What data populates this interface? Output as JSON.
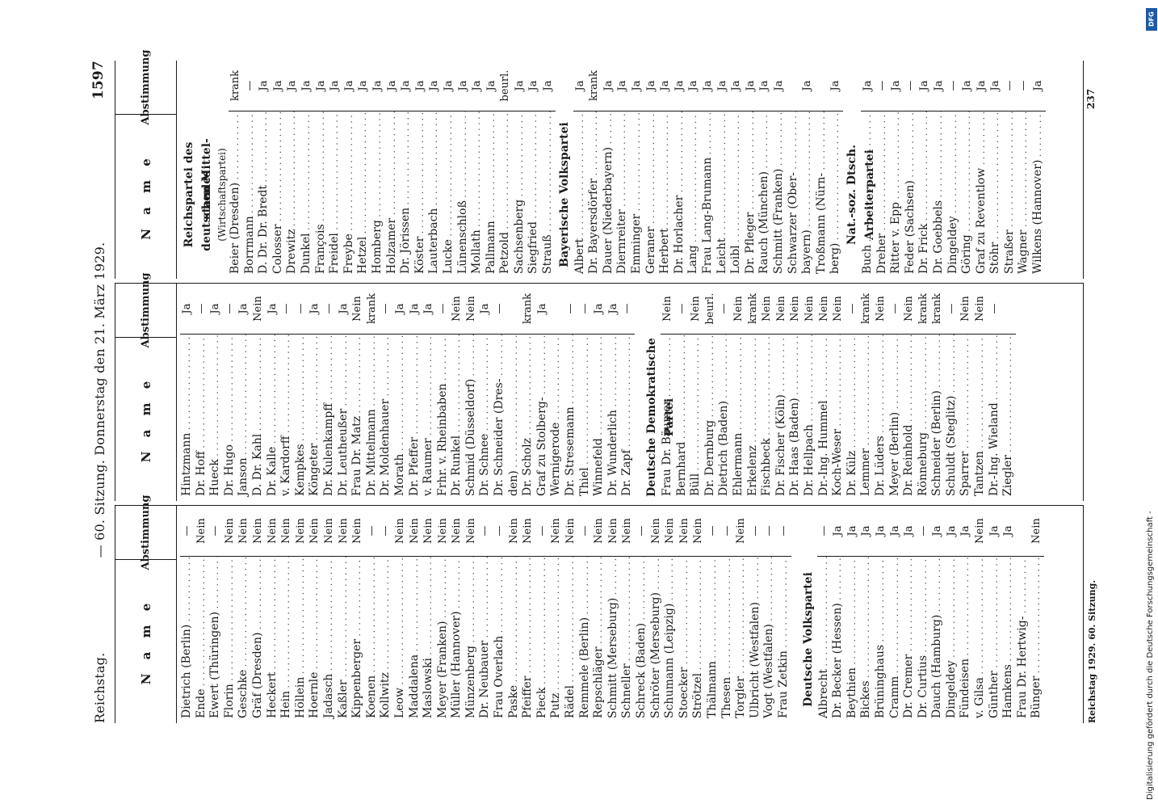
{
  "header": {
    "left": "Reichstag.",
    "center": "— 60. Sitzung. Donnerstag den 21. März 1929.",
    "page_number": "1597"
  },
  "columns": {
    "name_header": "N a m e",
    "vote_header": "Abstimmung"
  },
  "col1": {
    "rows": [
      {
        "n": "Dietrich (Berlin)",
        "v": "—"
      },
      {
        "n": "Ende",
        "v": "Nein"
      },
      {
        "n": "Ewert (Thüringen)",
        "v": "—"
      },
      {
        "n": "Florin",
        "v": "Nein"
      },
      {
        "n": "Geschke",
        "v": "Nein"
      },
      {
        "n": "Gräf (Dresden)",
        "v": "Nein"
      },
      {
        "n": "Heckert",
        "v": "Nein"
      },
      {
        "n": "Hein",
        "v": "Nein"
      },
      {
        "n": "Höllein",
        "v": "Nein"
      },
      {
        "n": "Hoernle",
        "v": "Nein"
      },
      {
        "n": "Jadasch",
        "v": "Nein"
      },
      {
        "n": "Kaßler",
        "v": "Nein"
      },
      {
        "n": "Kippenberger",
        "v": "Nein"
      },
      {
        "n": "Koenen",
        "v": "—"
      },
      {
        "n": "Kollwitz",
        "v": "—"
      },
      {
        "n": "Leow",
        "v": "Nein"
      },
      {
        "n": "Maddalena",
        "v": "Nein"
      },
      {
        "n": "Maslowski",
        "v": "Nein"
      },
      {
        "n": "Meyer (Franken)",
        "v": "Nein"
      },
      {
        "n": "Müller (Hannover)",
        "v": "Nein"
      },
      {
        "n": "Münzenberg",
        "v": "Nein"
      },
      {
        "n": "Dr. Neubauer",
        "v": "—"
      },
      {
        "n": "Frau Overlach",
        "v": "—"
      },
      {
        "n": "Paske",
        "v": "Nein"
      },
      {
        "n": "Pfeiffer",
        "v": "Nein"
      },
      {
        "n": "Pieck",
        "v": "—"
      },
      {
        "n": "Putz",
        "v": "Nein"
      },
      {
        "n": "Rädel",
        "v": "Nein"
      },
      {
        "n": "Remmele (Berlin)",
        "v": "—"
      },
      {
        "n": "Repschläger",
        "v": "Nein"
      },
      {
        "n": "Schmitt (Merseburg)",
        "v": "Nein"
      },
      {
        "n": "Schneller",
        "v": "Nein"
      },
      {
        "n": "Schreck (Baden)",
        "v": "—"
      },
      {
        "n": "Schröter (Merseburg)",
        "v": "Nein"
      },
      {
        "n": "Schumann (Leipzig)",
        "v": "Nein"
      },
      {
        "n": "Stoecker",
        "v": "Nein"
      },
      {
        "n": "Strötzel",
        "v": "Nein"
      },
      {
        "n": "Thälmann",
        "v": "—"
      },
      {
        "n": "Thesen",
        "v": "—"
      },
      {
        "n": "Torgler",
        "v": "Nein"
      },
      {
        "n": "Ulbricht (Westfalen)",
        "v": "—"
      },
      {
        "n": "Vogt (Westfalen)",
        "v": "—"
      },
      {
        "n": "Frau Zetkin",
        "v": "—"
      }
    ],
    "section": "Deutsche Volkspartei",
    "rows2": [
      {
        "n": "Albrecht",
        "v": "—"
      },
      {
        "n": "Dr. Becker (Hessen)",
        "v": "Ja"
      },
      {
        "n": "Beythien",
        "v": "Ja"
      },
      {
        "n": "Bickes",
        "v": "Ja"
      },
      {
        "n": "Brüninghaus",
        "v": "Ja"
      },
      {
        "n": "Cramm",
        "v": "Ja"
      },
      {
        "n": "Dr. Cremer",
        "v": "Ja"
      },
      {
        "n": "Dr. Curtius",
        "v": "—"
      },
      {
        "n": "Dauch (Hamburg)",
        "v": "Ja"
      },
      {
        "n": "Dingeldey",
        "v": "Ja"
      },
      {
        "n": "Fündeisen",
        "v": "Ja"
      },
      {
        "n": "v. Gilsa",
        "v": "Nein"
      },
      {
        "n": "Günther",
        "v": "Ja"
      },
      {
        "n": "Hamkens",
        "v": "Ja"
      },
      {
        "n": "Frau Dr. Hertwig-",
        "v": ""
      },
      {
        "n": "Bünger",
        "v": "Nein"
      }
    ]
  },
  "col2": {
    "rows": [
      {
        "n": "Hintzmann",
        "v": "Ja"
      },
      {
        "n": "Dr. Hoff",
        "v": "—"
      },
      {
        "n": "Hueck",
        "v": "Ja"
      },
      {
        "n": "Dr. Hugo",
        "v": "—"
      },
      {
        "n": "Janson",
        "v": "Ja"
      },
      {
        "n": "D. Dr. Kahl",
        "v": "Nein"
      },
      {
        "n": "Dr. Kalle",
        "v": "Ja"
      },
      {
        "n": "v. Kardorff",
        "v": "—"
      },
      {
        "n": "Kempkes",
        "v": "—"
      },
      {
        "n": "Köngeter",
        "v": "Ja"
      },
      {
        "n": "Dr. Kulenkampff",
        "v": "—"
      },
      {
        "n": "Dr. Leutheußer",
        "v": "Ja"
      },
      {
        "n": "Frau Dr. Matz",
        "v": "Nein"
      },
      {
        "n": "Dr. Mittelmann",
        "v": "krank"
      },
      {
        "n": "Dr. Moldenhauer",
        "v": "—"
      },
      {
        "n": "Morath",
        "v": "Ja"
      },
      {
        "n": "Dr. Pfeffer",
        "v": "Ja"
      },
      {
        "n": "v. Raumer",
        "v": "Ja"
      },
      {
        "n": "Frhr. v. Rheinbaben",
        "v": "—"
      },
      {
        "n": "Dr. Runkel",
        "v": "Nein"
      },
      {
        "n": "Schmid (Düsseldorf)",
        "v": "Nein"
      },
      {
        "n": "Dr. Schnee",
        "v": "Ja"
      },
      {
        "n": "Dr. Schneider (Dres-",
        "v": "—"
      },
      {
        "n": "den)",
        "v": ""
      },
      {
        "n": "Dr. Scholz",
        "v": "krank"
      },
      {
        "n": "Graf zu Stolberg-",
        "v": "Ja"
      },
      {
        "n": "Wernigerode",
        "v": ""
      },
      {
        "n": "Dr. Stresemann",
        "v": "—"
      },
      {
        "n": "Thiel",
        "v": "—"
      },
      {
        "n": "Winnefeld",
        "v": "Ja"
      },
      {
        "n": "Dr. Wunderlich",
        "v": "Ja"
      },
      {
        "n": "Dr. Zapf",
        "v": "—"
      }
    ],
    "section": "Deutsche Demokratische Partei",
    "rows2": [
      {
        "n": "Frau Dr. Bäumer",
        "v": "Nein"
      },
      {
        "n": "Bernhard",
        "v": "—"
      },
      {
        "n": "Büll",
        "v": "Nein"
      },
      {
        "n": "Dr. Dernburg",
        "v": "beurl."
      },
      {
        "n": "Dietrich (Baden)",
        "v": "—"
      },
      {
        "n": "Ehlermann",
        "v": "Nein"
      },
      {
        "n": "Erkelenz",
        "v": "krank"
      },
      {
        "n": "Fischbeck",
        "v": "Nein"
      },
      {
        "n": "Dr. Fischer (Köln)",
        "v": "Nein"
      },
      {
        "n": "Dr. Haas (Baden)",
        "v": "Nein"
      },
      {
        "n": "Dr. Hellpach",
        "v": "Nein"
      },
      {
        "n": "Dr.-Ing. Hummel",
        "v": "Nein"
      },
      {
        "n": "Koch-Weser",
        "v": "Nein"
      },
      {
        "n": "Dr. Külz",
        "v": "—"
      },
      {
        "n": "Lemmer",
        "v": "krank"
      },
      {
        "n": "Dr. Lüders",
        "v": "Nein"
      },
      {
        "n": "Meyer (Berlin)",
        "v": "—"
      },
      {
        "n": "Dr. Reinhold",
        "v": "Nein"
      },
      {
        "n": "Rönneburg",
        "v": "krank"
      },
      {
        "n": "Schneider (Berlin)",
        "v": "krank"
      },
      {
        "n": "Schuldt (Steglitz)",
        "v": "—"
      },
      {
        "n": "Sparrer",
        "v": "Nein"
      },
      {
        "n": "Tantzen",
        "v": "Nein"
      },
      {
        "n": "Dr.-Ing. Wieland",
        "v": "—"
      },
      {
        "n": "Ziegler",
        "v": ""
      }
    ]
  },
  "col3": {
    "section1": "Reichspartei des deutschen Mittel-",
    "section1b": "standes",
    "section1c": "(Wirtschaftspartei)",
    "rows": [
      {
        "n": "Beier (Dresden)",
        "v": "krank"
      },
      {
        "n": "Borrmann",
        "v": "—"
      },
      {
        "n": "D. Dr. Dr. Bredt",
        "v": "Ja"
      },
      {
        "n": "Colosser",
        "v": "Ja"
      },
      {
        "n": "Drewitz",
        "v": "Ja"
      },
      {
        "n": "Dunkel",
        "v": "Ja"
      },
      {
        "n": "François",
        "v": "Ja"
      },
      {
        "n": "Freidel",
        "v": "Ja"
      },
      {
        "n": "Freybe",
        "v": "Ja"
      },
      {
        "n": "Hetzel",
        "v": "Ja"
      },
      {
        "n": "Homberg",
        "v": "Ja"
      },
      {
        "n": "Holzamer",
        "v": "Ja"
      },
      {
        "n": "Dr. Jörissen",
        "v": "Ja"
      },
      {
        "n": "Köster",
        "v": "Ja"
      },
      {
        "n": "Lauterbach",
        "v": "Ja"
      },
      {
        "n": "Lucke",
        "v": "Ja"
      },
      {
        "n": "Lünenschloß",
        "v": "Ja"
      },
      {
        "n": "Mollath",
        "v": "Ja"
      },
      {
        "n": "Pallmann",
        "v": "Ja"
      },
      {
        "n": "Petzold",
        "v": "beurl."
      },
      {
        "n": "Sachsenberg",
        "v": "Ja"
      },
      {
        "n": "Siegfried",
        "v": "Ja"
      },
      {
        "n": "Strauß",
        "v": "Ja"
      }
    ],
    "section2": "Bayerische Volkspartei",
    "rows2": [
      {
        "n": "Albert",
        "v": "Ja"
      },
      {
        "n": "Dr. Bayersdörfer",
        "v": "krank"
      },
      {
        "n": "Dauer (Niederbayern)",
        "v": "Ja"
      },
      {
        "n": "Diernreiter",
        "v": "Ja"
      },
      {
        "n": "Emminger",
        "v": "Ja"
      },
      {
        "n": "Geraner",
        "v": "Ja"
      },
      {
        "n": "Herbert",
        "v": "Ja"
      },
      {
        "n": "Dr. Horlacher",
        "v": "Ja"
      },
      {
        "n": "Lang",
        "v": "Ja"
      },
      {
        "n": "Frau Lang-Brumann",
        "v": "Ja"
      },
      {
        "n": "Leicht",
        "v": "Ja"
      },
      {
        "n": "Loibl",
        "v": "Ja"
      },
      {
        "n": "Dr. Pfleger",
        "v": "Ja"
      },
      {
        "n": "Rauch (München)",
        "v": "Ja"
      },
      {
        "n": "Schmitt (Franken)",
        "v": "Ja"
      },
      {
        "n": "Schwarzer (Ober-",
        "v": ""
      },
      {
        "n": "bayern)",
        "v": "Ja"
      },
      {
        "n": "Troßmann (Nürn-",
        "v": ""
      },
      {
        "n": "berg)",
        "v": "Ja"
      }
    ],
    "section3": "Nat.-soz. Dtsch. Arbeiterpartei",
    "rows3": [
      {
        "n": "Buch",
        "v": "Ja"
      },
      {
        "n": "Dreher",
        "v": "—"
      },
      {
        "n": "Ritter v. Epp",
        "v": "Ja"
      },
      {
        "n": "Feder (Sachsen)",
        "v": "—"
      },
      {
        "n": "Dr. Frick",
        "v": "Ja"
      },
      {
        "n": "Dr. Goebbels",
        "v": "Ja"
      },
      {
        "n": "Dingeldey",
        "v": "—"
      },
      {
        "n": "Göring",
        "v": "Ja"
      },
      {
        "n": "Graf zu Reventlow",
        "v": "Ja"
      },
      {
        "n": "Stöhr",
        "v": "Ja"
      },
      {
        "n": "Straßer",
        "v": "—"
      },
      {
        "n": "Wagner",
        "v": "—"
      },
      {
        "n": "Wilkens (Hannover)",
        "v": "Ja"
      }
    ]
  },
  "footer": {
    "left": "Reichstag 1929. 60. Sitzung.",
    "number": "237"
  },
  "side_note": {
    "text": "Digitalisierung gefördert durch die Deutsche Forschungsgemeinschaft -",
    "logo": "DFG"
  }
}
